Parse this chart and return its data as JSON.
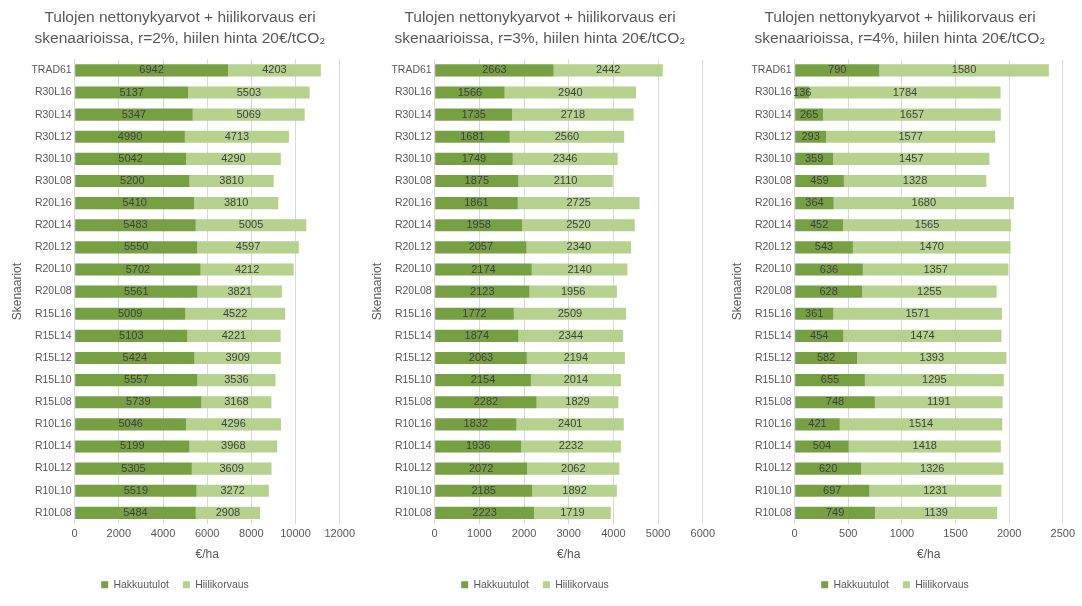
{
  "chart_data": [
    {
      "type": "bar",
      "orientation": "horizontal",
      "stacked": true,
      "title": "Tulojen nettonykyarvot + hiilikorvaus eri skenaarioissa, r=2%, hiilen hinta 20€/tCO₂",
      "xlabel": "€/ha",
      "ylabel": "Skenaariot",
      "categories": [
        "TRAD61",
        "R30L16",
        "R30L14",
        "R30L12",
        "R30L10",
        "R30L08",
        "R20L16",
        "R20L14",
        "R20L12",
        "R20L10",
        "R20L08",
        "R15L16",
        "R15L14",
        "R15L12",
        "R15L10",
        "R15L08",
        "R10L16",
        "R10L14",
        "R10L12",
        "R10L10",
        "R10L08"
      ],
      "xlim": [
        0,
        12000
      ],
      "xticks": [
        0,
        2000,
        4000,
        6000,
        8000,
        10000,
        12000
      ],
      "grid": "x",
      "legend": "bottom",
      "data_labels": true,
      "series": [
        {
          "name": "Hakkuutulot",
          "color": "#77a043",
          "values": [
            6942,
            5137,
            5347,
            4990,
            5042,
            5200,
            5410,
            5483,
            5550,
            5702,
            5561,
            5009,
            5103,
            5424,
            5557,
            5739,
            5046,
            5199,
            5305,
            5519,
            5484
          ]
        },
        {
          "name": "Hiilikorvaus",
          "color": "#b6d28e",
          "values": [
            4203,
            5503,
            5069,
            4713,
            4290,
            3810,
            3810,
            5005,
            4597,
            4212,
            3821,
            4522,
            4221,
            3909,
            3536,
            3168,
            4296,
            3968,
            3609,
            3272,
            2908
          ]
        }
      ]
    },
    {
      "type": "bar",
      "orientation": "horizontal",
      "stacked": true,
      "title": "Tulojen nettonykyarvot + hiilikorvaus eri skenaarioissa, r=3%, hiilen hinta 20€/tCO₂",
      "ylabel": "Skenaariot",
      "xlabel": "€/ha",
      "categories": [
        "TRAD61",
        "R30L16",
        "R30L14",
        "R30L12",
        "R30L10",
        "R30L08",
        "R20L16",
        "R20L14",
        "R20L12",
        "R20L10",
        "R20L08",
        "R15L16",
        "R15L14",
        "R15L12",
        "R15L10",
        "R15L08",
        "R10L16",
        "R10L14",
        "R10L12",
        "R10L10",
        "R10L08"
      ],
      "xlim": [
        0,
        6000
      ],
      "xticks": [
        0,
        1000,
        2000,
        3000,
        4000,
        5000,
        6000
      ],
      "grid": "x",
      "legend": "bottom",
      "data_labels": true,
      "series": [
        {
          "name": "Hakkuutulot",
          "color": "#77a043",
          "values": [
            2663,
            1566,
            1735,
            1681,
            1749,
            1875,
            1861,
            1958,
            2057,
            2174,
            2123,
            1772,
            1874,
            2063,
            2154,
            2282,
            1832,
            1936,
            2072,
            2185,
            2223
          ]
        },
        {
          "name": "Hiilikorvaus",
          "color": "#b6d28e",
          "values": [
            2442,
            2940,
            2718,
            2560,
            2346,
            2110,
            2725,
            2520,
            2340,
            2140,
            1956,
            2509,
            2344,
            2194,
            2014,
            1829,
            2401,
            2232,
            2062,
            1892,
            1719
          ]
        }
      ]
    },
    {
      "type": "bar",
      "orientation": "horizontal",
      "stacked": true,
      "title": "Tulojen nettonykyarvot + hiilikorvaus eri skenaarioissa, r=4%, hiilen hinta 20€/tCO₂",
      "ylabel": "Skenaariot",
      "xlabel": "€/ha",
      "categories": [
        "TRAD61",
        "R30L16",
        "R30L14",
        "R30L12",
        "R30L10",
        "R30L08",
        "R20L16",
        "R20L14",
        "R20L12",
        "R20L10",
        "R20L08",
        "R15L16",
        "R15L14",
        "R15L12",
        "R15L10",
        "R15L08",
        "R10L16",
        "R10L14",
        "R10L12",
        "R10L10",
        "R10L08"
      ],
      "xlim": [
        0,
        2500
      ],
      "xticks": [
        0,
        500,
        1000,
        1500,
        2000,
        2500
      ],
      "grid": "x",
      "legend": "bottom",
      "data_labels": true,
      "series": [
        {
          "name": "Hakkuutulot",
          "color": "#77a043",
          "values": [
            790,
            136,
            265,
            293,
            359,
            459,
            364,
            452,
            543,
            636,
            628,
            361,
            454,
            582,
            655,
            748,
            421,
            504,
            620,
            697,
            749
          ]
        },
        {
          "name": "Hiilikorvaus",
          "color": "#b6d28e",
          "values": [
            1580,
            1784,
            1657,
            1577,
            1457,
            1328,
            1680,
            1565,
            1470,
            1357,
            1255,
            1571,
            1474,
            1393,
            1295,
            1191,
            1514,
            1418,
            1326,
            1231,
            1139
          ]
        }
      ]
    }
  ]
}
